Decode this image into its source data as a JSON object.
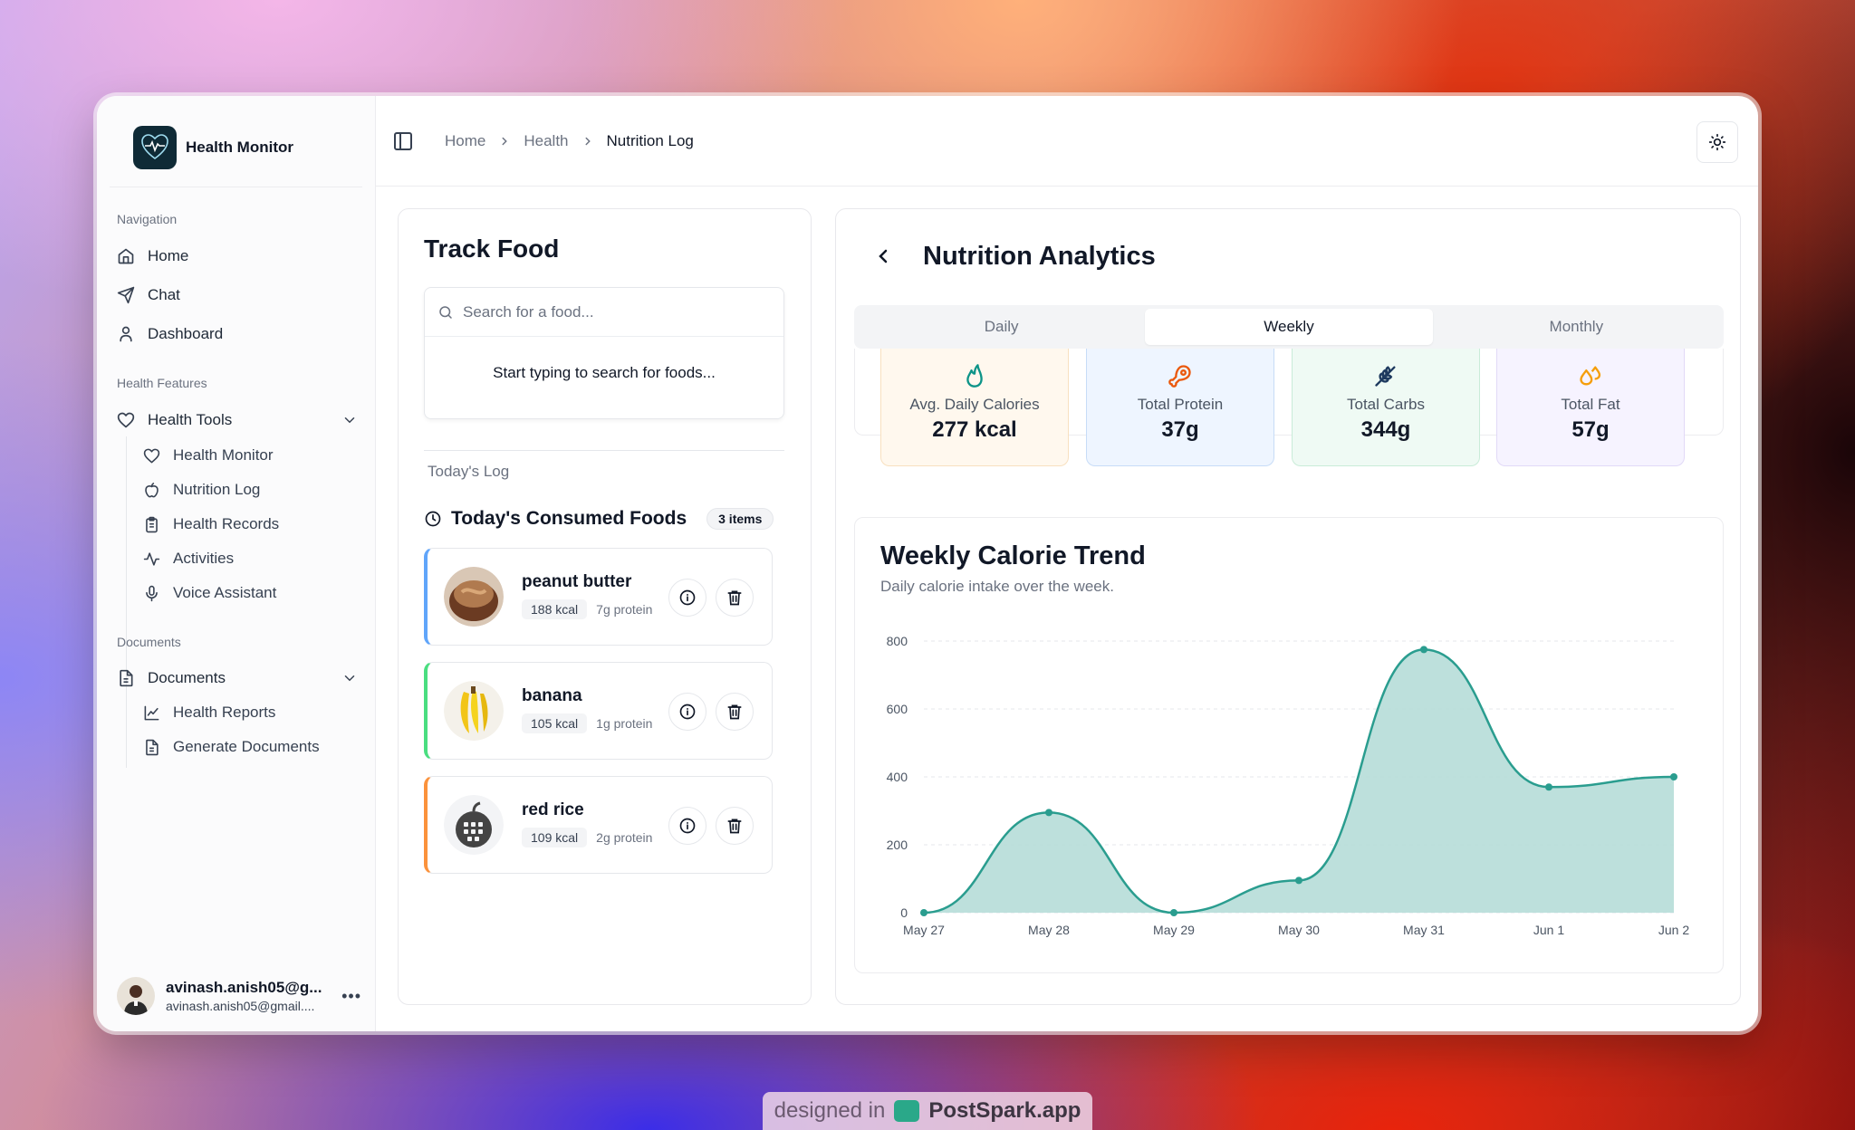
{
  "app": {
    "name": "Health Monitor"
  },
  "sidebar": {
    "nav_label": "Navigation",
    "nav": [
      {
        "label": "Home",
        "icon": "home-icon"
      },
      {
        "label": "Chat",
        "icon": "send-icon"
      },
      {
        "label": "Dashboard",
        "icon": "user-icon"
      }
    ],
    "features_label": "Health Features",
    "health_tools": {
      "label": "Health Tools",
      "items": [
        {
          "label": "Health Monitor",
          "icon": "heart-icon"
        },
        {
          "label": "Nutrition Log",
          "icon": "apple-icon"
        },
        {
          "label": "Health Records",
          "icon": "clipboard-icon"
        },
        {
          "label": "Activities",
          "icon": "activity-icon"
        },
        {
          "label": "Voice Assistant",
          "icon": "mic-icon"
        }
      ]
    },
    "documents_label": "Documents",
    "documents": {
      "label": "Documents",
      "items": [
        {
          "label": "Health Reports",
          "icon": "line-chart-icon"
        },
        {
          "label": "Generate Documents",
          "icon": "file-text-icon"
        }
      ]
    },
    "user": {
      "name": "avinash.anish05@g...",
      "email": "avinash.anish05@gmail...."
    }
  },
  "breadcrumb": [
    "Home",
    "Health",
    "Nutrition Log"
  ],
  "track_food": {
    "title": "Track Food",
    "search_placeholder": "Search for a food...",
    "search_hint": "Start typing to search for foods...",
    "todays_log": "Today's Log",
    "consumed_title": "Today's Consumed Foods",
    "count_badge": "3 items",
    "foods": [
      {
        "name": "peanut butter",
        "kcal": "188 kcal",
        "protein": "7g protein",
        "accent": "#60a5fa"
      },
      {
        "name": "banana",
        "kcal": "105 kcal",
        "protein": "1g protein",
        "accent": "#4ade80"
      },
      {
        "name": "red rice",
        "kcal": "109 kcal",
        "protein": "2g protein",
        "accent": "#fb923c"
      }
    ]
  },
  "analytics": {
    "title": "Nutrition Analytics",
    "tabs": [
      "Daily",
      "Weekly",
      "Monthly"
    ],
    "active_tab": "Weekly",
    "stats": [
      {
        "label": "Avg. Daily Calories",
        "value": "277 kcal",
        "icon": "flame-icon",
        "bg": "#fff8ee",
        "border": "#f8e0bf",
        "color": "#0d9488"
      },
      {
        "label": "Total Protein",
        "value": "37g",
        "icon": "drumstick-icon",
        "bg": "#eef5ff",
        "border": "#c7dcf7",
        "color": "#ea580c"
      },
      {
        "label": "Total Carbs",
        "value": "344g",
        "icon": "wheat-icon",
        "bg": "#effaf4",
        "border": "#c9ecd8",
        "color": "#1e3a5f"
      },
      {
        "label": "Total Fat",
        "value": "57g",
        "icon": "droplets-icon",
        "bg": "#f6f3ff",
        "border": "#e1d9f7",
        "color": "#f59e0b"
      }
    ]
  },
  "chart_data": {
    "type": "area",
    "title": "Weekly Calorie Trend",
    "subtitle": "Daily calorie intake over the week.",
    "x": [
      "May 27",
      "May 28",
      "May 29",
      "May 30",
      "May 31",
      "Jun 1",
      "Jun 2"
    ],
    "series": [
      {
        "values": [
          0,
          295,
          0,
          95,
          775,
          370,
          400
        ]
      }
    ],
    "yticks": [
      0,
      200,
      400,
      600,
      800
    ],
    "ylim": [
      0,
      800
    ],
    "grid": true,
    "color": "#2a9d8f",
    "fill": "#b6ddd8"
  },
  "footer": {
    "prefix": "designed in",
    "brand": "PostSpark.app"
  }
}
